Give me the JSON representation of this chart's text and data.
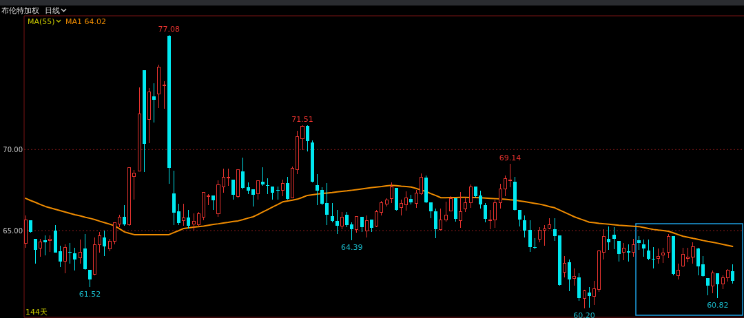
{
  "chart_data": {
    "type": "candlestick",
    "title": "布伦特加权",
    "subtitle": "日线",
    "legend_title": "MA(55)",
    "legend": "top left",
    "grid": "y",
    "tick_labels": "y",
    "categories": [
      null,
      null,
      null,
      null,
      null,
      null,
      null,
      null,
      null,
      null,
      null,
      null,
      null,
      null,
      null,
      null,
      null,
      null,
      null,
      null,
      null,
      null,
      null,
      null,
      null,
      null,
      null,
      null,
      null,
      null,
      null,
      null,
      null,
      null,
      null,
      null,
      null,
      null,
      null,
      null,
      null,
      null,
      null,
      null,
      null,
      null,
      null,
      null,
      null,
      null,
      null,
      null,
      null,
      null,
      null,
      null,
      null,
      null,
      null,
      null,
      null,
      null,
      null,
      null,
      null,
      null,
      null,
      null,
      null,
      null,
      null,
      null,
      null,
      null,
      null,
      null,
      null,
      null,
      null,
      null,
      null,
      null,
      null,
      null,
      null,
      null,
      null,
      null,
      null,
      null,
      null,
      null,
      null,
      null,
      null,
      null,
      null,
      null,
      null,
      null,
      null,
      null,
      null,
      null,
      null,
      null,
      null,
      null,
      null,
      null,
      null,
      null,
      null,
      null,
      null,
      null,
      null,
      null,
      null,
      null,
      null,
      null,
      null,
      null,
      null,
      null,
      null,
      null,
      null,
      null,
      null,
      null,
      null,
      null,
      null,
      null,
      null,
      null,
      null,
      null,
      null,
      null,
      null,
      null
    ],
    "ylim": [
      59.65,
      78.25
    ],
    "yticks": [
      {
        "value": 65,
        "label": "65.00"
      },
      {
        "value": 70,
        "label": "70.00"
      }
    ],
    "ohlc": [
      [
        64.22,
        65.92,
        63.94,
        65.67
      ],
      [
        65.64,
        65.64,
        64.86,
        64.93
      ],
      [
        64.5,
        64.5,
        62.95,
        63.82
      ],
      [
        63.9,
        64.5,
        63.4,
        64.29
      ],
      [
        64.39,
        64.72,
        63.48,
        64.26
      ],
      [
        64.4,
        64.72,
        63.7,
        64.45
      ],
      [
        65.0,
        65.35,
        63.63,
        63.63
      ],
      [
        63.73,
        64.05,
        62.73,
        63.09
      ],
      [
        63.09,
        64.15,
        62.38,
        63.94
      ],
      [
        63.7,
        64.22,
        62.95,
        63.65
      ],
      [
        63.61,
        63.94,
        62.52,
        63.23
      ],
      [
        63.34,
        64.43,
        62.95,
        63.68
      ],
      [
        63.91,
        64.79,
        62.59,
        62.63
      ],
      [
        62.58,
        62.6,
        61.52,
        61.98
      ],
      [
        62.31,
        64.58,
        62.24,
        64.11
      ],
      [
        64.15,
        64.93,
        63.65,
        64.67
      ],
      [
        64.58,
        65.0,
        63.44,
        64.01
      ],
      [
        63.87,
        64.5,
        63.73,
        64.36
      ],
      [
        64.33,
        65.5,
        64.15,
        65.5
      ],
      [
        65.42,
        65.99,
        65.21,
        65.85
      ],
      [
        65.85,
        66.56,
        65.28,
        65.38
      ],
      [
        65.38,
        68.9,
        65.28,
        68.9
      ],
      [
        68.33,
        68.75,
        66.9,
        68.54
      ],
      [
        68.68,
        73.85,
        68.68,
        72.2
      ],
      [
        74.89,
        74.89,
        68.61,
        70.34
      ],
      [
        71.87,
        73.78,
        70.38,
        73.57
      ],
      [
        73.29,
        74.07,
        71.66,
        73.07
      ],
      [
        73.43,
        75.24,
        72.58,
        75.1
      ],
      [
        73.95,
        74.2,
        72.5,
        74.0
      ],
      [
        77.01,
        77.08,
        67.9,
        68.85
      ],
      [
        67.29,
        68.68,
        65.35,
        66.09
      ],
      [
        66.18,
        66.67,
        65.35,
        65.47
      ],
      [
        65.61,
        66.67,
        65.28,
        65.78
      ],
      [
        65.82,
        66.27,
        65.14,
        65.28
      ],
      [
        65.42,
        66.06,
        65.0,
        65.59
      ],
      [
        65.38,
        66.13,
        65.28,
        66.02
      ],
      [
        65.82,
        67.37,
        65.64,
        67.34
      ],
      [
        67.1,
        67.27,
        66.56,
        67.15
      ],
      [
        67.15,
        67.15,
        66.27,
        66.88
      ],
      [
        66.06,
        68.12,
        65.85,
        67.83
      ],
      [
        67.69,
        68.82,
        67.34,
        68.3
      ],
      [
        68.24,
        68.82,
        67.75,
        68.28
      ],
      [
        68.14,
        68.14,
        66.91,
        67.2
      ],
      [
        67.12,
        68.8,
        66.98,
        68.78
      ],
      [
        68.65,
        69.49,
        67.55,
        67.62
      ],
      [
        67.66,
        67.97,
        67.27,
        67.45
      ],
      [
        67.55,
        67.55,
        66.49,
        67.22
      ],
      [
        67.29,
        68.1,
        66.91,
        68.07
      ],
      [
        68.0,
        68.92,
        67.76,
        67.83
      ],
      [
        67.8,
        68.22,
        67.27,
        67.77
      ],
      [
        67.73,
        67.73,
        66.91,
        67.34
      ],
      [
        67.5,
        67.7,
        66.91,
        67.48
      ],
      [
        67.5,
        68.14,
        67.12,
        67.9
      ],
      [
        67.95,
        68.33,
        66.91,
        66.94
      ],
      [
        67.03,
        68.97,
        66.98,
        68.85
      ],
      [
        68.75,
        71.16,
        68.47,
        70.78
      ],
      [
        70.67,
        71.51,
        69.96,
        71.44
      ],
      [
        71.47,
        71.5,
        69.89,
        70.52
      ],
      [
        70.45,
        70.57,
        67.97,
        68.02
      ],
      [
        67.79,
        68.47,
        66.56,
        67.48
      ],
      [
        67.5,
        67.69,
        66.56,
        66.66
      ],
      [
        66.7,
        67.95,
        65.35,
        65.99
      ],
      [
        65.88,
        66.7,
        65.5,
        65.59
      ],
      [
        65.59,
        66.27,
        64.79,
        65.31
      ],
      [
        65.28,
        66.13,
        65.07,
        65.85
      ],
      [
        65.96,
        66.13,
        65.21,
        65.35
      ],
      [
        65.38,
        65.5,
        64.39,
        65.07
      ],
      [
        65.07,
        65.9,
        64.86,
        65.88
      ],
      [
        65.85,
        65.85,
        64.93,
        65.21
      ],
      [
        64.97,
        65.92,
        64.58,
        65.61
      ],
      [
        65.68,
        65.68,
        64.93,
        65.17
      ],
      [
        65.28,
        66.27,
        65.21,
        66.18
      ],
      [
        66.13,
        66.84,
        65.92,
        66.7
      ],
      [
        66.63,
        66.98,
        66.49,
        66.87
      ],
      [
        66.98,
        67.97,
        66.7,
        67.69
      ],
      [
        67.65,
        67.65,
        66.23,
        66.27
      ],
      [
        66.44,
        66.91,
        65.92,
        66.66
      ],
      [
        66.59,
        67.41,
        66.23,
        67.03
      ],
      [
        66.95,
        67.22,
        66.63,
        66.73
      ],
      [
        66.66,
        67.51,
        66.42,
        67.31
      ],
      [
        67.27,
        68.54,
        67.2,
        68.3
      ],
      [
        68.29,
        68.4,
        66.7,
        66.74
      ],
      [
        66.74,
        66.74,
        65.75,
        66.2
      ],
      [
        66.18,
        66.35,
        64.53,
        65.07
      ],
      [
        65.07,
        66.35,
        65.0,
        65.68
      ],
      [
        65.67,
        66.77,
        65.57,
        65.96
      ],
      [
        66.2,
        67.12,
        66.18,
        66.98
      ],
      [
        66.98,
        66.98,
        65.57,
        65.71
      ],
      [
        65.61,
        67.37,
        65.18,
        66.18
      ],
      [
        66.35,
        67.03,
        66.13,
        66.73
      ],
      [
        66.7,
        67.83,
        66.42,
        67.69
      ],
      [
        67.73,
        67.73,
        67.05,
        67.12
      ],
      [
        67.17,
        67.48,
        66.35,
        66.63
      ],
      [
        66.59,
        66.7,
        65.5,
        65.71
      ],
      [
        65.64,
        66.27,
        65.07,
        65.68
      ],
      [
        65.67,
        66.91,
        65.18,
        66.7
      ],
      [
        66.7,
        67.88,
        66.35,
        67.55
      ],
      [
        67.55,
        68.4,
        67.12,
        68.19
      ],
      [
        68.1,
        69.14,
        67.69,
        68.12
      ],
      [
        68.0,
        68.33,
        66.23,
        66.27
      ],
      [
        66.27,
        66.27,
        65.24,
        65.67
      ],
      [
        65.64,
        65.92,
        64.58,
        65.0
      ],
      [
        65.03,
        65.64,
        63.68,
        63.97
      ],
      [
        64.0,
        64.55,
        63.87,
        63.97
      ],
      [
        64.48,
        65.21,
        64.29,
        65.03
      ],
      [
        65.03,
        65.35,
        64.08,
        65.11
      ],
      [
        65.14,
        65.78,
        65.1,
        65.38
      ],
      [
        65.1,
        65.78,
        64.36,
        64.65
      ],
      [
        64.72,
        64.72,
        61.6,
        61.64
      ],
      [
        62.45,
        63.44,
        62.1,
        62.97
      ],
      [
        63.06,
        63.23,
        61.25,
        61.98
      ],
      [
        62.07,
        62.66,
        61.6,
        62.17
      ],
      [
        62.1,
        62.38,
        60.69,
        60.85
      ],
      [
        60.82,
        61.36,
        60.2,
        61.27
      ],
      [
        61.2,
        61.53,
        60.25,
        60.96
      ],
      [
        60.96,
        61.89,
        60.4,
        61.42
      ],
      [
        61.39,
        63.82,
        61.22,
        63.73
      ],
      [
        63.65,
        65.1,
        63.2,
        64.65
      ],
      [
        64.48,
        65.24,
        63.8,
        64.29
      ],
      [
        64.76,
        65.21,
        63.87,
        64.5
      ],
      [
        64.36,
        64.36,
        63.09,
        63.54
      ],
      [
        63.65,
        64.22,
        63.16,
        63.91
      ],
      [
        63.72,
        64.15,
        63.09,
        63.63
      ],
      [
        63.65,
        64.5,
        63.37,
        64.11
      ],
      [
        64.39,
        64.65,
        63.8,
        64.25
      ],
      [
        64.15,
        64.43,
        63.37,
        63.9
      ],
      [
        63.77,
        64.43,
        63.16,
        63.26
      ],
      [
        63.28,
        63.97,
        62.66,
        63.24
      ],
      [
        63.3,
        63.91,
        62.97,
        63.4
      ],
      [
        63.48,
        63.94,
        63.02,
        63.63
      ],
      [
        63.65,
        64.79,
        63.3,
        64.65
      ],
      [
        64.67,
        64.67,
        62.24,
        62.31
      ],
      [
        62.24,
        62.95,
        61.99,
        62.56
      ],
      [
        62.8,
        63.94,
        62.77,
        63.54
      ],
      [
        63.3,
        63.94,
        63.06,
        63.37
      ],
      [
        63.37,
        64.29,
        62.97,
        64.01
      ],
      [
        63.91,
        63.94,
        62.24,
        62.8
      ],
      [
        62.92,
        63.44,
        62.17,
        62.21
      ],
      [
        62.07,
        62.07,
        61.03,
        61.6
      ],
      [
        61.6,
        62.52,
        61.13,
        62.38
      ],
      [
        62.38,
        62.38,
        60.82,
        61.67
      ],
      [
        61.71,
        62.24,
        61.39,
        62.1
      ],
      [
        62.1,
        62.63,
        61.84,
        62.55
      ],
      [
        62.49,
        62.92,
        61.71,
        61.88
      ]
    ],
    "colors": [
      "#e8332f",
      "#00e8f0",
      "#00e8f0",
      "#e8332f",
      "#00e8f0",
      "#e8332f",
      "#00e8f0",
      "#00e8f0",
      "#e8332f",
      "#00e8f0",
      "#00e8f0",
      "#e8332f",
      "#00e8f0",
      "#00e8f0",
      "#e8332f",
      "#e8332f",
      "#00e8f0",
      "#e8332f",
      "#e8332f",
      "#e8332f",
      "#00e8f0",
      "#e8332f",
      "#e8332f",
      "#e8332f",
      "#00e8f0",
      "#e8332f",
      "#00e8f0",
      "#e8332f",
      "#e8332f",
      "#00e8f0",
      "#00e8f0",
      "#00e8f0",
      "#e8332f",
      "#00e8f0",
      "#e8332f",
      "#e8332f",
      "#e8332f",
      "#e8332f",
      "#00e8f0",
      "#e8332f",
      "#e8332f",
      "#e8332f",
      "#00e8f0",
      "#e8332f",
      "#00e8f0",
      "#00e8f0",
      "#00e8f0",
      "#e8332f",
      "#00e8f0",
      "#00e8f0",
      "#00e8f0",
      "#00e8f0",
      "#e8332f",
      "#00e8f0",
      "#e8332f",
      "#e8332f",
      "#e8332f",
      "#00e8f0",
      "#00e8f0",
      "#00e8f0",
      "#00e8f0",
      "#00e8f0",
      "#00e8f0",
      "#00e8f0",
      "#e8332f",
      "#00e8f0",
      "#00e8f0",
      "#e8332f",
      "#00e8f0",
      "#e8332f",
      "#00e8f0",
      "#e8332f",
      "#e8332f",
      "#e8332f",
      "#e8332f",
      "#00e8f0",
      "#e8332f",
      "#e8332f",
      "#00e8f0",
      "#e8332f",
      "#e8332f",
      "#00e8f0",
      "#00e8f0",
      "#00e8f0",
      "#e8332f",
      "#e8332f",
      "#e8332f",
      "#00e8f0",
      "#e8332f",
      "#e8332f",
      "#e8332f",
      "#00e8f0",
      "#00e8f0",
      "#00e8f0",
      "#e8332f",
      "#e8332f",
      "#e8332f",
      "#e8332f",
      "#e8332f",
      "#00e8f0",
      "#00e8f0",
      "#00e8f0",
      "#00e8f0",
      "#00e8f0",
      "#e8332f",
      "#e8332f",
      "#e8332f",
      "#00e8f0",
      "#00e8f0",
      "#e8332f",
      "#00e8f0",
      "#e8332f",
      "#00e8f0",
      "#e8332f",
      "#00e8f0",
      "#e8332f",
      "#e8332f",
      "#e8332f",
      "#00e8f0",
      "#00e8f0",
      "#00e8f0",
      "#e8332f",
      "#00e8f0",
      "#e8332f",
      "#00e8f0",
      "#00e8f0",
      "#00e8f0",
      "#00e8f0",
      "#e8332f",
      "#e8332f",
      "#e8332f",
      "#00e8f0",
      "#e8332f",
      "#e8332f",
      "#e8332f",
      "#e8332f",
      "#00e8f0",
      "#00e8f0",
      "#00e8f0",
      "#e8332f",
      "#00e8f0",
      "#e8332f",
      "#e8332f",
      "#00e8f0"
    ],
    "series": [
      {
        "type": "line",
        "name": "MA1 64.02",
        "color": "#f08c00",
        "values": [
          66.99,
          66.86,
          66.74,
          66.61,
          66.49,
          66.4,
          66.32,
          66.23,
          66.15,
          66.06,
          65.98,
          65.91,
          65.83,
          65.76,
          65.68,
          65.58,
          65.49,
          65.4,
          65.3,
          65.11,
          64.92,
          64.83,
          64.75,
          64.75,
          64.75,
          64.75,
          64.75,
          64.75,
          64.75,
          64.75,
          64.88,
          65.0,
          65.13,
          65.17,
          65.21,
          65.24,
          65.28,
          65.33,
          65.38,
          65.42,
          65.47,
          65.51,
          65.56,
          65.6,
          65.68,
          65.77,
          65.85,
          65.99,
          66.15,
          66.3,
          66.46,
          66.61,
          66.77,
          66.83,
          66.88,
          66.94,
          67.05,
          67.17,
          67.21,
          67.25,
          67.29,
          67.32,
          67.35,
          67.39,
          67.42,
          67.45,
          67.49,
          67.53,
          67.57,
          67.61,
          67.65,
          67.69,
          67.72,
          67.76,
          67.79,
          67.77,
          67.74,
          67.72,
          67.69,
          67.6,
          67.5,
          67.41,
          67.28,
          67.16,
          67.03,
          67.03,
          67.04,
          67.04,
          67.05,
          67.05,
          67.04,
          67.04,
          67.03,
          67.01,
          66.99,
          66.97,
          66.95,
          66.93,
          66.9,
          66.88,
          66.83,
          66.78,
          66.73,
          66.68,
          66.63,
          66.56,
          66.48,
          66.41,
          66.27,
          66.13,
          65.99,
          65.85,
          65.74,
          65.63,
          65.52,
          65.49,
          65.45,
          65.42,
          65.39,
          65.36,
          65.33,
          65.31,
          65.29,
          65.27,
          65.25,
          65.19,
          65.13,
          65.07,
          65.03,
          65.0,
          64.96,
          64.86,
          64.75,
          64.65,
          64.59,
          64.52,
          64.46,
          64.39,
          64.33,
          64.28,
          64.22,
          64.15,
          64.09,
          64.02
        ]
      }
    ],
    "annotations": [
      {
        "text": "77.08",
        "y": 77.08
      },
      {
        "text": "71.51",
        "y": 71.51
      },
      {
        "text": "69.14",
        "y": 69.14
      },
      {
        "text": "61.52",
        "y": 61.52
      },
      {
        "text": "64.39",
        "y": 64.39
      },
      {
        "text": "60.20",
        "y": 60.2
      },
      {
        "text": "60.82",
        "y": 60.82
      },
      "144天"
    ]
  }
}
